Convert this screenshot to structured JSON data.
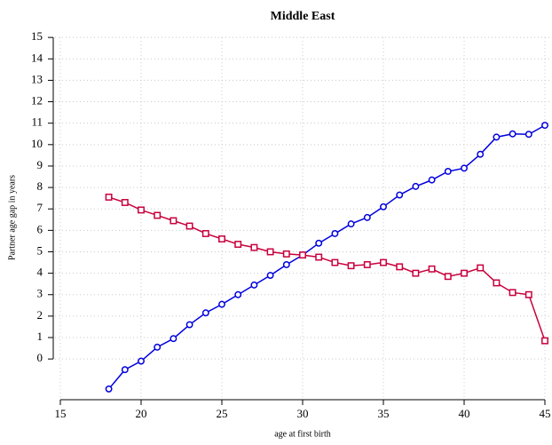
{
  "chart_data": {
    "type": "line",
    "title": "Middle East",
    "x_label": "age at first birth",
    "y_label": "Partner age gap in years",
    "x": [
      18,
      19,
      20,
      21,
      22,
      23,
      24,
      25,
      26,
      27,
      28,
      29,
      30,
      31,
      32,
      33,
      34,
      35,
      36,
      37,
      38,
      39,
      40,
      41,
      42,
      43,
      44,
      45
    ],
    "series": [
      {
        "color": "#0000dd",
        "marker": "circle",
        "values": [
          -1.4,
          -0.5,
          -0.1,
          0.55,
          0.95,
          1.6,
          2.15,
          2.55,
          3.0,
          3.45,
          3.9,
          4.4,
          4.85,
          5.4,
          5.85,
          6.3,
          6.6,
          7.1,
          7.65,
          8.05,
          8.35,
          8.75,
          8.9,
          9.55,
          10.35,
          10.5,
          10.48,
          10.9
        ]
      },
      {
        "color": "#c8003c",
        "marker": "square",
        "values": [
          7.55,
          7.3,
          6.95,
          6.7,
          6.45,
          6.2,
          5.85,
          5.6,
          5.35,
          5.2,
          5.0,
          4.9,
          4.85,
          4.75,
          4.5,
          4.35,
          4.4,
          4.5,
          4.3,
          4.0,
          4.2,
          3.85,
          4.0,
          4.25,
          3.55,
          3.1,
          3.0,
          0.85
        ]
      }
    ],
    "xlim": [
      15,
      45
    ],
    "xticks": [
      15,
      20,
      25,
      30,
      35,
      40,
      45
    ],
    "ylim": [
      -1.9,
      15
    ],
    "yticks": [
      0,
      1,
      2,
      3,
      4,
      5,
      6,
      7,
      8,
      9,
      10,
      11,
      12,
      13,
      14,
      15
    ],
    "grid": true
  }
}
